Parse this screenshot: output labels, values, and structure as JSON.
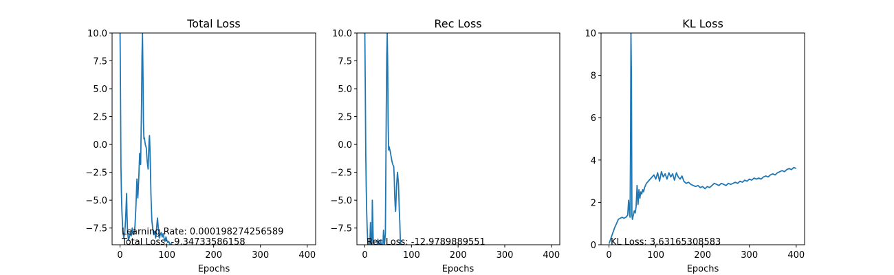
{
  "chart_data": [
    {
      "type": "line",
      "title": "Total Loss",
      "xlabel": "Epochs",
      "ylabel": "",
      "xlim": [
        -17,
        418
      ],
      "ylim": [
        -9,
        10
      ],
      "xticks": [
        0,
        100,
        200,
        300,
        400
      ],
      "yticks": [
        -7.5,
        -5.0,
        -2.5,
        0.0,
        2.5,
        5.0,
        7.5,
        10.0
      ],
      "ytick_labels": [
        "−7.5",
        "−5.0",
        "−2.5",
        "0.0",
        "2.5",
        "5.0",
        "7.5",
        "10.0"
      ],
      "color": "#1f77b4",
      "annotations": [
        "Learning Rate: 0.000198274256589",
        "Total Loss: -9.34733586158"
      ],
      "series": [
        {
          "x": [
            0,
            1,
            2,
            3,
            4,
            5,
            6,
            8,
            10,
            12,
            14,
            15,
            16,
            18,
            20,
            22,
            24,
            26,
            28,
            30,
            32,
            34,
            36,
            38,
            40,
            42,
            44,
            45,
            46,
            47,
            48,
            49,
            50,
            51,
            52,
            53,
            54,
            56,
            58,
            60,
            62,
            63,
            64,
            65,
            66,
            68,
            70,
            72,
            74,
            76,
            78,
            80,
            82,
            84,
            86,
            88,
            90,
            92,
            94,
            96,
            98,
            100,
            102,
            104,
            106,
            108,
            110,
            112,
            114,
            116,
            118,
            120,
            122,
            124
          ],
          "y": [
            10,
            5,
            -2,
            -4.5,
            -6,
            -7,
            -7.8,
            -8.4,
            -7.9,
            -6.7,
            -4.4,
            -6.5,
            -7.8,
            -8.6,
            -8.3,
            -7.9,
            -8.2,
            -7.5,
            -8.1,
            -8.0,
            -7.3,
            -5.5,
            -3.1,
            -4.8,
            -3.0,
            -0.8,
            -1.8,
            1.0,
            4.0,
            8.0,
            10.0,
            6.5,
            2.0,
            0.5,
            0.6,
            0.3,
            0.0,
            -0.3,
            -1.5,
            -2.2,
            0.4,
            0.8,
            -0.5,
            -2.3,
            -4.5,
            -6.8,
            -7.6,
            -8.1,
            -7.8,
            -8.4,
            -7.6,
            -6.6,
            -7.6,
            -8.4,
            -8.1,
            -7.9,
            -8.3,
            -8.0,
            -8.4,
            -8.7,
            -8.3,
            -8.6,
            -8.8,
            -8.7,
            -8.9,
            -9.0,
            -8.9,
            -9.1,
            -9.2,
            -9.1,
            -9.3,
            -9.35,
            -9.4,
            -9.5
          ]
        }
      ]
    },
    {
      "type": "line",
      "title": "Rec Loss",
      "xlabel": "Epochs",
      "ylabel": "",
      "xlim": [
        -17,
        418
      ],
      "ylim": [
        -9,
        10
      ],
      "xticks": [
        0,
        100,
        200,
        300,
        400
      ],
      "yticks": [
        -7.5,
        -5.0,
        -2.5,
        0.0,
        2.5,
        5.0,
        7.5,
        10.0
      ],
      "ytick_labels": [
        "−7.5",
        "−5.0",
        "−2.5",
        "0.0",
        "2.5",
        "5.0",
        "7.5",
        "10.0"
      ],
      "color": "#1f77b4",
      "annotations": [
        "Rec Loss: -12.9789889551"
      ],
      "series": [
        {
          "x": [
            0,
            1,
            2,
            3,
            4,
            5,
            6,
            8,
            10,
            12,
            14,
            15,
            16,
            18,
            20,
            22,
            24,
            26,
            28,
            30,
            32,
            34,
            36,
            38,
            40,
            42,
            44,
            45,
            46,
            47,
            48,
            49,
            50,
            51,
            52,
            53,
            54,
            56,
            58,
            60,
            62,
            63,
            64,
            65,
            66,
            68,
            70,
            72,
            74,
            75,
            76,
            78,
            80
          ],
          "y": [
            10,
            5,
            -1,
            -4,
            -6,
            -7.5,
            -8.5,
            -9.5,
            -10,
            -7.0,
            -9.8,
            -10.0,
            -5.0,
            -8.5,
            -9.0,
            -10.0,
            -9.5,
            -9.8,
            -8.5,
            -9.2,
            -10.0,
            -8.6,
            -9.2,
            -9.8,
            -7.7,
            -9.0,
            -8.0,
            -3.0,
            3.0,
            8.0,
            10.0,
            7.0,
            2.0,
            -0.5,
            -0.2,
            -0.4,
            -0.5,
            -1.0,
            -1.5,
            -1.8,
            -2.0,
            -3.0,
            -4.5,
            -5.5,
            -6.0,
            -3.8,
            -2.5,
            -3.5,
            -6.0,
            -7.0,
            -8.5,
            -9.5,
            -10.0
          ]
        }
      ]
    },
    {
      "type": "line",
      "title": "KL Loss",
      "xlabel": "Epochs",
      "ylabel": "",
      "xlim": [
        -17,
        418
      ],
      "ylim": [
        0,
        10
      ],
      "xticks": [
        0,
        100,
        200,
        300,
        400
      ],
      "yticks": [
        0,
        2,
        4,
        6,
        8,
        10
      ],
      "ytick_labels": [
        "0",
        "2",
        "4",
        "6",
        "8",
        "10"
      ],
      "color": "#1f77b4",
      "annotations": [
        "KL Loss: 3.63165308583"
      ],
      "series": [
        {
          "x": [
            0,
            4,
            8,
            12,
            16,
            20,
            24,
            28,
            32,
            36,
            40,
            42,
            44,
            45,
            46,
            47,
            48,
            49,
            50,
            52,
            54,
            56,
            58,
            60,
            62,
            64,
            66,
            68,
            70,
            72,
            74,
            76,
            78,
            80,
            84,
            88,
            92,
            96,
            100,
            104,
            108,
            112,
            116,
            120,
            124,
            128,
            132,
            136,
            140,
            144,
            148,
            152,
            156,
            160,
            165,
            170,
            175,
            180,
            185,
            190,
            195,
            200,
            205,
            210,
            215,
            220,
            225,
            230,
            235,
            240,
            245,
            250,
            255,
            260,
            265,
            270,
            275,
            280,
            285,
            290,
            295,
            300,
            305,
            310,
            315,
            320,
            325,
            330,
            335,
            340,
            345,
            350,
            355,
            360,
            365,
            370,
            375,
            380,
            385,
            390,
            395,
            400
          ],
          "y": [
            0.05,
            0.3,
            0.55,
            0.8,
            1.0,
            1.2,
            1.25,
            1.3,
            1.25,
            1.3,
            1.4,
            2.1,
            1.5,
            1.3,
            5.0,
            10.0,
            8.0,
            1.4,
            1.2,
            1.4,
            1.6,
            1.5,
            1.8,
            2.8,
            1.9,
            2.6,
            2.2,
            2.5,
            2.4,
            2.6,
            2.5,
            2.7,
            2.8,
            2.9,
            3.0,
            3.1,
            3.2,
            3.3,
            3.1,
            3.4,
            3.0,
            3.45,
            3.2,
            3.35,
            3.1,
            3.4,
            3.2,
            3.35,
            3.05,
            3.4,
            3.2,
            3.1,
            3.25,
            3.0,
            2.9,
            2.95,
            2.85,
            2.8,
            2.75,
            2.8,
            2.7,
            2.75,
            2.65,
            2.75,
            2.7,
            2.8,
            2.9,
            2.85,
            2.8,
            2.9,
            2.85,
            2.8,
            2.9,
            2.85,
            2.9,
            2.95,
            2.9,
            3.0,
            2.95,
            3.05,
            3.0,
            3.1,
            3.05,
            3.15,
            3.1,
            3.15,
            3.1,
            3.2,
            3.25,
            3.2,
            3.3,
            3.35,
            3.3,
            3.4,
            3.45,
            3.5,
            3.45,
            3.55,
            3.6,
            3.55,
            3.65,
            3.6
          ]
        }
      ]
    }
  ]
}
